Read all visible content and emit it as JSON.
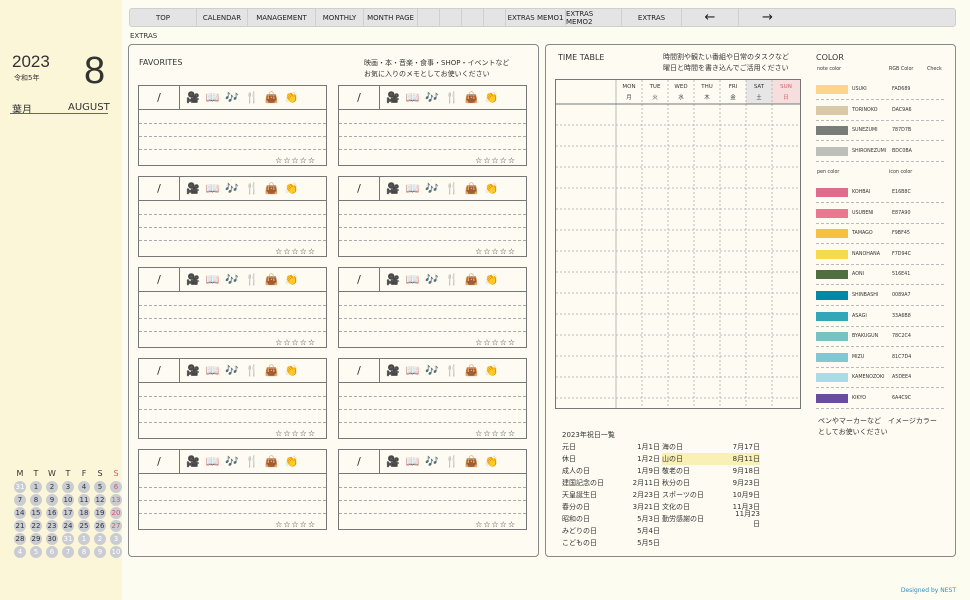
{
  "sidebar": {
    "year": "2023",
    "wareki": "令和5年",
    "month_num": "8",
    "month_jp": "葉月",
    "month_en": "AUGUST",
    "mini_calendar": {
      "headers": [
        "M",
        "T",
        "W",
        "T",
        "F",
        "S",
        "S"
      ],
      "weeks": [
        [
          "31",
          "1",
          "2",
          "3",
          "4",
          "5",
          "6"
        ],
        [
          "7",
          "8",
          "9",
          "10",
          "11",
          "12",
          "13"
        ],
        [
          "14",
          "15",
          "16",
          "17",
          "18",
          "19",
          "20"
        ],
        [
          "21",
          "22",
          "23",
          "24",
          "25",
          "26",
          "27"
        ],
        [
          "28",
          "29",
          "30",
          "31",
          "1",
          "2",
          "3"
        ],
        [
          "4",
          "5",
          "6",
          "7",
          "8",
          "9",
          "10"
        ]
      ]
    }
  },
  "nav": {
    "items": [
      "TOP",
      "CALENDAR",
      "MANAGEMENT",
      "MONTHLY",
      "MONTH PAGE",
      "",
      "",
      "",
      "",
      "EXTRAS MEMO1",
      "EXTRAS MEMO2",
      "EXTRAS"
    ],
    "prev": "←",
    "next": "→"
  },
  "breadcrumb": "EXTRAS",
  "favorites": {
    "title": "FAVORITES",
    "note1": "映画・本・音楽・食事・SHOP・イベントなど",
    "note2": "お気に入りのメモとしてお使いください",
    "slash": "/",
    "icons": [
      "🎥",
      "📖",
      "🎶",
      "🍴",
      "👜",
      "👏"
    ],
    "stars": "☆☆☆☆☆"
  },
  "timetable": {
    "title": "TIME TABLE",
    "note1": "時間割や観たい番組や日常のタスクなど",
    "note2": "曜日と時間を書き込んでご活用ください",
    "days": [
      {
        "en": "MON",
        "jp": "月"
      },
      {
        "en": "TUE",
        "jp": "火"
      },
      {
        "en": "WED",
        "jp": "水"
      },
      {
        "en": "THU",
        "jp": "木"
      },
      {
        "en": "FRI",
        "jp": "金"
      },
      {
        "en": "SAT",
        "jp": "土"
      },
      {
        "en": "SUN",
        "jp": "日"
      }
    ]
  },
  "holidays": {
    "title": "2023年祝日一覧",
    "left": [
      [
        "元日",
        "1月1日"
      ],
      [
        "休日",
        "1月2日"
      ],
      [
        "成人の日",
        "1月9日"
      ],
      [
        "建国記念の日",
        "2月11日"
      ],
      [
        "天皇誕生日",
        "2月23日"
      ],
      [
        "春分の日",
        "3月21日"
      ],
      [
        "昭和の日",
        "5月3日"
      ],
      [
        "みどりの日",
        "5月4日"
      ],
      [
        "こどもの日",
        "5月5日"
      ]
    ],
    "right": [
      [
        "海の日",
        "7月17日"
      ],
      [
        "山の日",
        "8月11日"
      ],
      [
        "敬老の日",
        "9月18日"
      ],
      [
        "秋分の日",
        "9月23日"
      ],
      [
        "スポーツの日",
        "10月9日"
      ],
      [
        "文化の日",
        "11月3日"
      ],
      [
        "勤労感謝の日",
        "11月23日"
      ]
    ]
  },
  "color": {
    "title": "COLOR",
    "note_header": "note color",
    "rgb_header": "RGB Color",
    "check_header": "Check",
    "pen_header": "pen color",
    "icon_header": "icon color",
    "note_colors": [
      {
        "name": "USUKI",
        "hex": "FAD689",
        "c": "#fad689"
      },
      {
        "name": "TORINOKO",
        "hex": "DAC9A6",
        "c": "#dac9a6"
      },
      {
        "name": "SUNEZUMI",
        "hex": "787D7B",
        "c": "#787d7b"
      },
      {
        "name": "SHIRONEZUMI",
        "hex": "BDC0BA",
        "c": "#bdc0ba"
      }
    ],
    "pen_colors": [
      {
        "name": "KOHBAI",
        "hex": "E16B8C",
        "c": "#e16b8c"
      },
      {
        "name": "USUBENI",
        "hex": "E87A90",
        "c": "#e87a90"
      },
      {
        "name": "TAMAGO",
        "hex": "F9BF45",
        "c": "#f9bf45"
      },
      {
        "name": "NANOHANA",
        "hex": "F7D94C",
        "c": "#f7d94c"
      },
      {
        "name": "AONI",
        "hex": "516E41",
        "c": "#516e41"
      },
      {
        "name": "SHINBASHI",
        "hex": "0089A7",
        "c": "#0089a7"
      },
      {
        "name": "ASAGI",
        "hex": "33A6B8",
        "c": "#33a6b8"
      },
      {
        "name": "BYAKUGUN",
        "hex": "78C2C4",
        "c": "#78c2c4"
      },
      {
        "name": "MIZU",
        "hex": "81C7D4",
        "c": "#81c7d4"
      },
      {
        "name": "KAMENOZOKI",
        "hex": "A5DEE4",
        "c": "#a5dee4"
      },
      {
        "name": "KIKYO",
        "hex": "6A4C9C",
        "c": "#6a4c9c"
      }
    ],
    "footer_note1": "ペンやマーカーなど　イメージカラー",
    "footer_note2": "としてお使いください"
  },
  "credit": "Designed by NEST"
}
